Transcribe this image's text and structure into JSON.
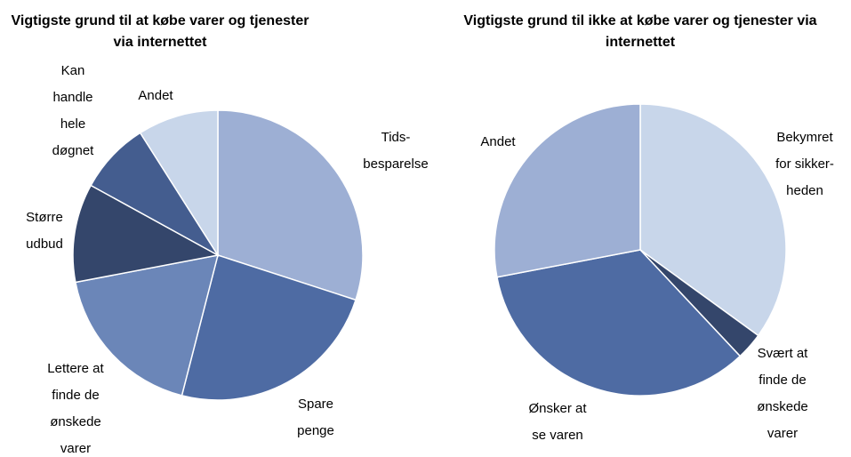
{
  "chart_data": [
    {
      "type": "pie",
      "title": "Vigtigste grund til at købe varer og tjenester via internettet",
      "categories": [
        [
          "Tids-",
          "besparelse"
        ],
        [
          "Spare",
          "penge"
        ],
        [
          "Lettere at",
          "finde de",
          "ønskede",
          "varer"
        ],
        [
          "Større",
          "udbud"
        ],
        [
          "Kan",
          "handle",
          "hele",
          "døgnet"
        ],
        [
          "Andet"
        ]
      ],
      "values": [
        30,
        24,
        18,
        11,
        8,
        9
      ],
      "colors": [
        "#9dafd4",
        "#4e6ba3",
        "#6b86b8",
        "#34466b",
        "#445d8f",
        "#c8d6ea"
      ]
    },
    {
      "type": "pie",
      "title": "Vigtigste grund til ikke at købe varer og tjenester via internettet",
      "categories": [
        [
          "Bekymret",
          "for sikker-",
          "heden"
        ],
        [
          "Svært at",
          "finde de",
          "ønskede",
          "varer"
        ],
        [
          "Ønsker at",
          "se varen"
        ],
        [
          "Andet"
        ]
      ],
      "values": [
        35,
        3,
        34,
        28
      ],
      "colors": [
        "#c8d6ea",
        "#34466b",
        "#4e6ba3",
        "#9dafd4"
      ]
    }
  ]
}
